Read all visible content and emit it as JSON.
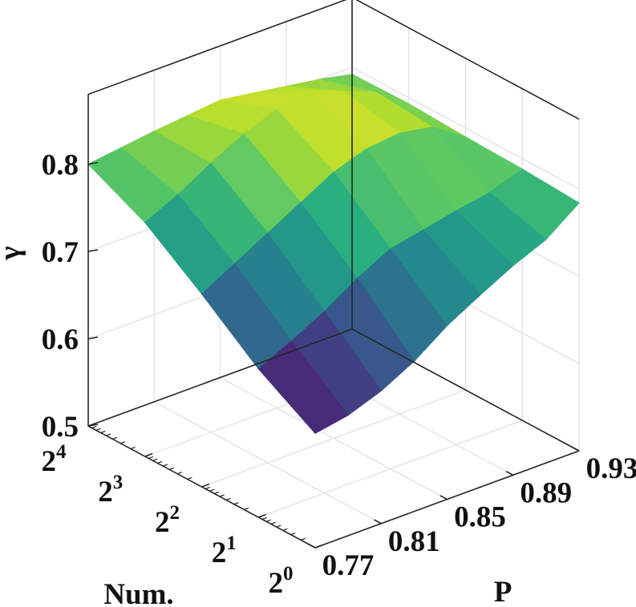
{
  "chart_data": {
    "type": "surface",
    "title": "",
    "xlabel": "P",
    "ylabel": "Num.",
    "zlabel": "γ",
    "p_values": [
      0.77,
      0.79,
      0.81,
      0.83,
      0.85,
      0.87,
      0.89,
      0.91,
      0.93
    ],
    "num_values": [
      1,
      2,
      4,
      8,
      16
    ],
    "p_tick_labels": [
      "0.77",
      "0.81",
      "0.85",
      "0.89",
      "0.93"
    ],
    "num_tick_labels": [
      {
        "base": "2",
        "exp": "0"
      },
      {
        "base": "2",
        "exp": "1"
      },
      {
        "base": "2",
        "exp": "2"
      },
      {
        "base": "2",
        "exp": "3"
      },
      {
        "base": "2",
        "exp": "4"
      }
    ],
    "z_tick_labels": [
      "0.5",
      "0.6",
      "0.7",
      "0.8"
    ],
    "zlim": [
      0.5,
      0.88
    ],
    "z_grid": [
      [
        0.631,
        0.638,
        0.652,
        0.672,
        0.699,
        0.72,
        0.74,
        0.756,
        0.784
      ],
      [
        0.67,
        0.688,
        0.708,
        0.732,
        0.752,
        0.76,
        0.768,
        0.775,
        0.788
      ],
      [
        0.721,
        0.742,
        0.763,
        0.784,
        0.805,
        0.818,
        0.822,
        0.815,
        0.79
      ],
      [
        0.768,
        0.786,
        0.808,
        0.828,
        0.842,
        0.849,
        0.835,
        0.82,
        0.793
      ],
      [
        0.8,
        0.805,
        0.81,
        0.814,
        0.818,
        0.812,
        0.806,
        0.8,
        0.792
      ]
    ],
    "colormap": [
      "#440154",
      "#472d7b",
      "#3b528b",
      "#2c728e",
      "#21918c",
      "#28ae80",
      "#5ec962",
      "#addc30",
      "#fde725"
    ],
    "grid": true,
    "legend": "none"
  }
}
